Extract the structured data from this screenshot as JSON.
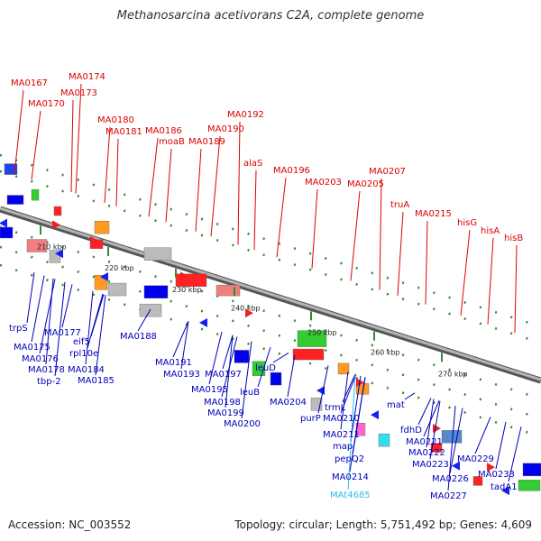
{
  "header": {
    "title": "Methanosarcina acetivorans C2A, complete genome"
  },
  "footer": {
    "accession": "Accession: NC_003552",
    "summary": "Topology: circular; Length: 5,751,492 bp; Genes: 4,609"
  },
  "colors": {
    "top_label": "#dd0000",
    "bottom_label": "#0000bb",
    "rna_label": "#33bbee",
    "backbone": "#8c8c8c"
  },
  "backbone": {
    "kbp_ticks": [
      "210 kbp",
      "220 kbp",
      "230 kbp",
      "240 kbp",
      "250 kbp",
      "260 kbp",
      "270 kbp"
    ]
  },
  "top_labels": [
    "MA0167",
    "MA0174",
    "MA0173",
    "MA0170",
    "MA0180",
    "MA0181",
    "MA0186",
    "moaB",
    "MA0192",
    "MA0190",
    "MA0189",
    "alaS",
    "MA0196",
    "MA0203",
    "MA0207",
    "MA0205",
    "truA",
    "MA0215",
    "hisG",
    "hisA",
    "hisB"
  ],
  "bottom_labels": [
    "trpS",
    "MA0177",
    "MA0175",
    "MA0176",
    "MA0178",
    "tbp-2",
    "eif5",
    "rpl10e",
    "MA0184",
    "MA0185",
    "MA0188",
    "MA0191",
    "MA0193",
    "MA0197",
    "MA0195",
    "MA0198",
    "MA0199",
    "MA0200",
    "leuB",
    "leuD",
    "MA0204",
    "purP",
    "trmL",
    "MA0210",
    "MA0211",
    "map",
    "pepQ2",
    "MA0214",
    "MAt4685",
    "mat",
    "fdhD",
    "MA0221",
    "MA0222",
    "MA0223",
    "MA0226",
    "MA0229",
    "MA0227",
    "MA0233",
    "tadA1"
  ]
}
